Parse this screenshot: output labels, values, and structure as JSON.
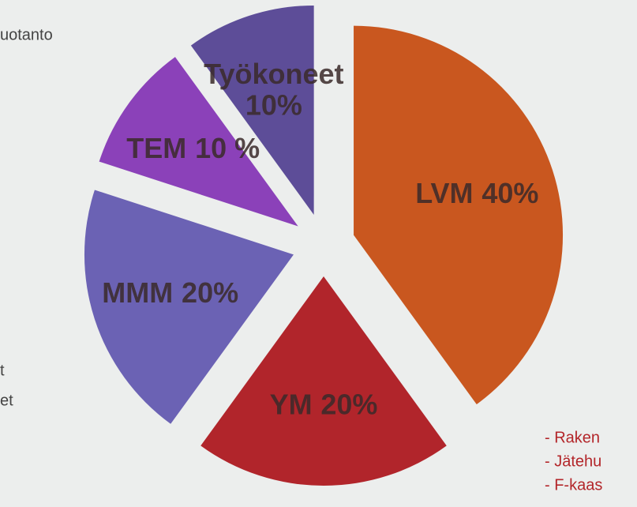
{
  "chart_data": {
    "type": "pie",
    "categories": [
      "LVM",
      "YM",
      "MMM",
      "TEM",
      "Työkoneet"
    ],
    "values": [
      40,
      20,
      20,
      10,
      10
    ],
    "value_labels": [
      "40%",
      "20%",
      "20%",
      "10 %",
      "10%"
    ],
    "colors": [
      "#c9571f",
      "#b1252b",
      "#6b62b4",
      "#8b41b9",
      "#5d4d98"
    ],
    "exploded": true,
    "left_notes": [
      "uotanto",
      "t",
      "et"
    ],
    "right_notes": [
      "- Raken",
      "- Jätehu",
      "- F-kaas"
    ]
  }
}
